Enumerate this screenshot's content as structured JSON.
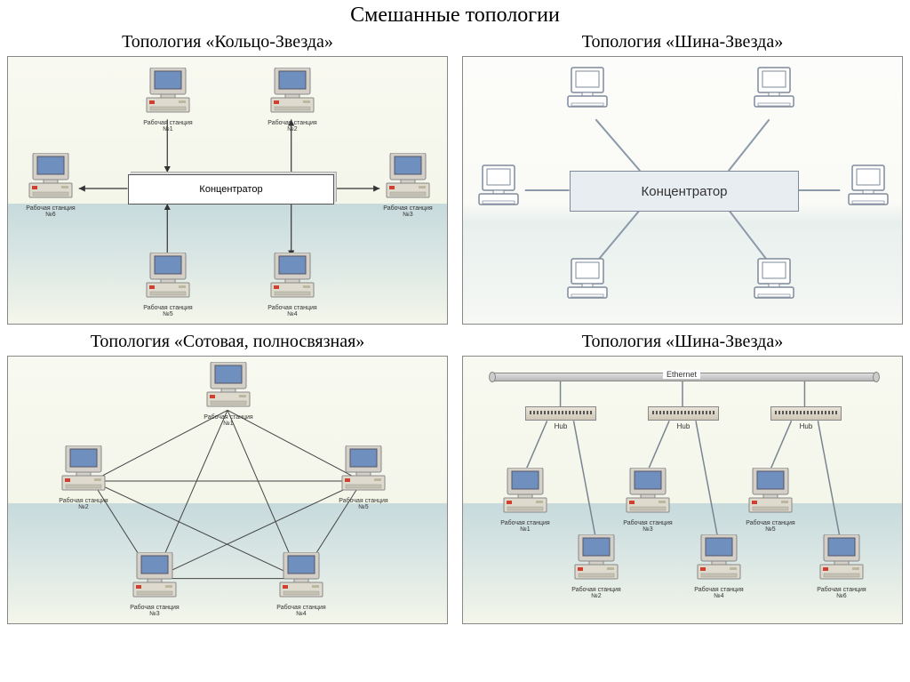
{
  "main_title": "Смешанные топологии",
  "panels": {
    "ring_star": {
      "title": "Топология «Кольцо-Звезда»",
      "hub_label": "Концентратор",
      "workstations": [
        {
          "label": "Рабочая станция №1"
        },
        {
          "label": "Рабочая станция №2"
        },
        {
          "label": "Рабочая станция №3"
        },
        {
          "label": "Рабочая станция №4"
        },
        {
          "label": "Рабочая станция №5"
        },
        {
          "label": "Рабочая станция №6"
        }
      ],
      "line_color": "#333333",
      "arrow_color": "#333333"
    },
    "bus_star_top": {
      "title": "Топология «Шина-Звезда»",
      "hub_label": "Концентратор",
      "line_color": "#8b99a8"
    },
    "mesh": {
      "title": "Топология «Сотовая, полносвязная»",
      "workstations": [
        {
          "label": "Рабочая станция №1"
        },
        {
          "label": "Рабочая станция №2"
        },
        {
          "label": "Рабочая станция №3"
        },
        {
          "label": "Рабочая станция №4"
        },
        {
          "label": "Рабочая станция №5"
        }
      ],
      "line_color": "#444444"
    },
    "bus_star_bottom": {
      "title": "Топология «Шина-Звезда»",
      "ethernet_label": "Ethernet",
      "hub_label": "Hub",
      "workstations": [
        {
          "label": "Рабочая станция №1"
        },
        {
          "label": "Рабочая станция №2"
        },
        {
          "label": "Рабочая станция №3"
        },
        {
          "label": "Рабочая станция №4"
        },
        {
          "label": "Рабочая станция №5"
        },
        {
          "label": "Рабочая станция №6"
        }
      ],
      "line_color": "#7a8490"
    }
  },
  "computer_colors": {
    "monitor_frame": "#d4d0c8",
    "screen": "#6f8fbf",
    "base": "#dedacd",
    "red_dot": "#d04030"
  }
}
